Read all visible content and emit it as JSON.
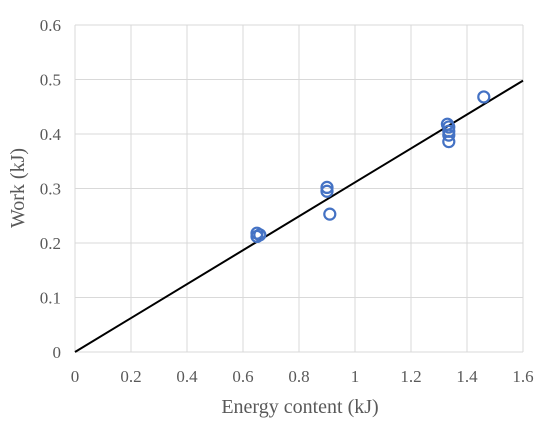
{
  "chart_data": {
    "type": "scatter",
    "title": "",
    "xlabel": "Energy content (kJ)",
    "ylabel": "Work (kJ)",
    "xlim": [
      0,
      1.6
    ],
    "ylim": [
      0,
      0.6
    ],
    "x_ticks": [
      "0",
      "0.2",
      "0.4",
      "0.6",
      "0.8",
      "1",
      "1.2",
      "1.4",
      "1.6"
    ],
    "y_ticks": [
      "0",
      "0.1",
      "0.2",
      "0.3",
      "0.4",
      "0.5",
      "0.6"
    ],
    "grid": "on",
    "legend": "none",
    "series": [
      {
        "x": [
          0.65,
          0.65,
          0.66,
          0.9,
          0.9,
          0.91,
          1.33,
          1.335,
          1.335,
          1.335,
          1.335,
          1.46
        ],
        "y": [
          0.218,
          0.212,
          0.215,
          0.302,
          0.295,
          0.253,
          0.418,
          0.413,
          0.405,
          0.398,
          0.386,
          0.468
        ],
        "color": "#4472c4",
        "marker": "circle-open"
      }
    ],
    "trendline": {
      "x": [
        0,
        1.6
      ],
      "y": [
        0,
        0.498
      ],
      "color": "#000000"
    }
  }
}
